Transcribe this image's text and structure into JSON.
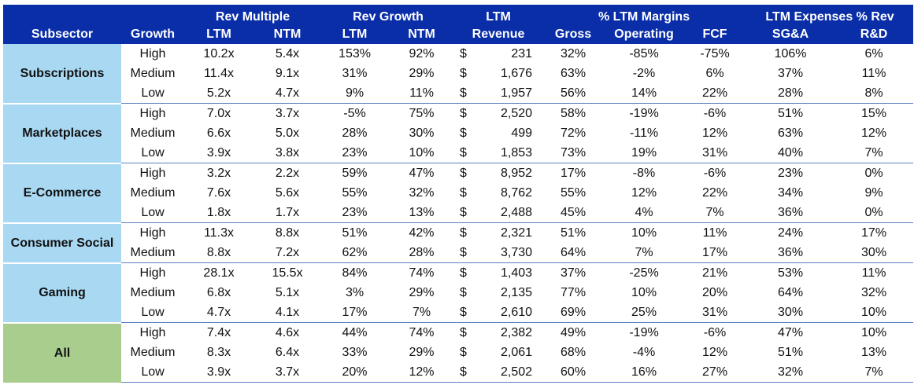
{
  "header": {
    "groups": {
      "rev_multiple": "Rev Multiple",
      "rev_growth": "Rev Growth",
      "ltm_top": "LTM",
      "ltm_margins": "% LTM Margins",
      "ltm_expenses": "LTM Expenses % Rev"
    },
    "columns": {
      "subsector": "Subsector",
      "growth": "Growth",
      "rm_ltm": "LTM",
      "rm_ntm": "NTM",
      "rg_ltm": "LTM",
      "rg_ntm": "NTM",
      "revenue": "Revenue",
      "gross": "Gross",
      "operating": "Operating",
      "fcf": "FCF",
      "sga": "SG&A",
      "rd": "R&D"
    }
  },
  "chart_data": {
    "type": "table",
    "currency_symbol": "$",
    "groups": [
      {
        "subsector": "Subscriptions",
        "rows": [
          {
            "growth": "High",
            "rm_ltm": "10.2x",
            "rm_ntm": "5.4x",
            "rg_ltm": "153%",
            "rg_ntm": "92%",
            "revenue": "231",
            "gross": "32%",
            "operating": "-85%",
            "fcf": "-75%",
            "sga": "106%",
            "rd": "6%"
          },
          {
            "growth": "Medium",
            "rm_ltm": "11.4x",
            "rm_ntm": "9.1x",
            "rg_ltm": "31%",
            "rg_ntm": "29%",
            "revenue": "1,676",
            "gross": "63%",
            "operating": "-2%",
            "fcf": "6%",
            "sga": "37%",
            "rd": "11%"
          },
          {
            "growth": "Low",
            "rm_ltm": "5.2x",
            "rm_ntm": "4.7x",
            "rg_ltm": "9%",
            "rg_ntm": "11%",
            "revenue": "1,957",
            "gross": "56%",
            "operating": "14%",
            "fcf": "22%",
            "sga": "28%",
            "rd": "8%"
          }
        ]
      },
      {
        "subsector": "Marketplaces",
        "rows": [
          {
            "growth": "High",
            "rm_ltm": "7.0x",
            "rm_ntm": "3.7x",
            "rg_ltm": "-5%",
            "rg_ntm": "75%",
            "revenue": "2,520",
            "gross": "58%",
            "operating": "-19%",
            "fcf": "-6%",
            "sga": "51%",
            "rd": "15%"
          },
          {
            "growth": "Medium",
            "rm_ltm": "6.6x",
            "rm_ntm": "5.0x",
            "rg_ltm": "28%",
            "rg_ntm": "30%",
            "revenue": "499",
            "gross": "72%",
            "operating": "-11%",
            "fcf": "12%",
            "sga": "63%",
            "rd": "12%"
          },
          {
            "growth": "Low",
            "rm_ltm": "3.9x",
            "rm_ntm": "3.8x",
            "rg_ltm": "23%",
            "rg_ntm": "10%",
            "revenue": "1,853",
            "gross": "73%",
            "operating": "19%",
            "fcf": "31%",
            "sga": "40%",
            "rd": "7%"
          }
        ]
      },
      {
        "subsector": "E-Commerce",
        "rows": [
          {
            "growth": "High",
            "rm_ltm": "3.2x",
            "rm_ntm": "2.2x",
            "rg_ltm": "59%",
            "rg_ntm": "47%",
            "revenue": "8,952",
            "gross": "17%",
            "operating": "-8%",
            "fcf": "-6%",
            "sga": "23%",
            "rd": "0%"
          },
          {
            "growth": "Medium",
            "rm_ltm": "7.6x",
            "rm_ntm": "5.6x",
            "rg_ltm": "55%",
            "rg_ntm": "32%",
            "revenue": "8,762",
            "gross": "55%",
            "operating": "12%",
            "fcf": "22%",
            "sga": "34%",
            "rd": "9%"
          },
          {
            "growth": "Low",
            "rm_ltm": "1.8x",
            "rm_ntm": "1.7x",
            "rg_ltm": "23%",
            "rg_ntm": "13%",
            "revenue": "2,488",
            "gross": "45%",
            "operating": "4%",
            "fcf": "7%",
            "sga": "36%",
            "rd": "0%"
          }
        ]
      },
      {
        "subsector": "Consumer Social",
        "rows": [
          {
            "growth": "High",
            "rm_ltm": "11.3x",
            "rm_ntm": "8.8x",
            "rg_ltm": "51%",
            "rg_ntm": "42%",
            "revenue": "2,321",
            "gross": "51%",
            "operating": "10%",
            "fcf": "11%",
            "sga": "24%",
            "rd": "17%"
          },
          {
            "growth": "Medium",
            "rm_ltm": "8.8x",
            "rm_ntm": "7.2x",
            "rg_ltm": "62%",
            "rg_ntm": "28%",
            "revenue": "3,730",
            "gross": "64%",
            "operating": "7%",
            "fcf": "17%",
            "sga": "36%",
            "rd": "30%"
          }
        ]
      },
      {
        "subsector": "Gaming",
        "rows": [
          {
            "growth": "High",
            "rm_ltm": "28.1x",
            "rm_ntm": "15.5x",
            "rg_ltm": "84%",
            "rg_ntm": "74%",
            "revenue": "1,403",
            "gross": "37%",
            "operating": "-25%",
            "fcf": "21%",
            "sga": "53%",
            "rd": "11%"
          },
          {
            "growth": "Medium",
            "rm_ltm": "6.8x",
            "rm_ntm": "5.1x",
            "rg_ltm": "3%",
            "rg_ntm": "29%",
            "revenue": "2,135",
            "gross": "77%",
            "operating": "10%",
            "fcf": "20%",
            "sga": "64%",
            "rd": "32%"
          },
          {
            "growth": "Low",
            "rm_ltm": "4.7x",
            "rm_ntm": "4.1x",
            "rg_ltm": "17%",
            "rg_ntm": "7%",
            "revenue": "2,610",
            "gross": "69%",
            "operating": "25%",
            "fcf": "31%",
            "sga": "30%",
            "rd": "10%"
          }
        ]
      },
      {
        "subsector": "All",
        "rows": [
          {
            "growth": "High",
            "rm_ltm": "7.4x",
            "rm_ntm": "4.6x",
            "rg_ltm": "44%",
            "rg_ntm": "74%",
            "revenue": "2,382",
            "gross": "49%",
            "operating": "-19%",
            "fcf": "-6%",
            "sga": "47%",
            "rd": "10%"
          },
          {
            "growth": "Medium",
            "rm_ltm": "8.3x",
            "rm_ntm": "6.4x",
            "rg_ltm": "33%",
            "rg_ntm": "29%",
            "revenue": "2,061",
            "gross": "68%",
            "operating": "-4%",
            "fcf": "12%",
            "sga": "51%",
            "rd": "13%"
          },
          {
            "growth": "Low",
            "rm_ltm": "3.9x",
            "rm_ntm": "3.7x",
            "rg_ltm": "20%",
            "rg_ntm": "12%",
            "revenue": "2,502",
            "gross": "60%",
            "operating": "16%",
            "fcf": "27%",
            "sga": "32%",
            "rd": "7%"
          }
        ]
      }
    ],
    "colors": {
      "header_bg": "#0a2ea8",
      "subsector_bg": "#a9d8f3",
      "all_bg": "#a9cd8d"
    }
  }
}
